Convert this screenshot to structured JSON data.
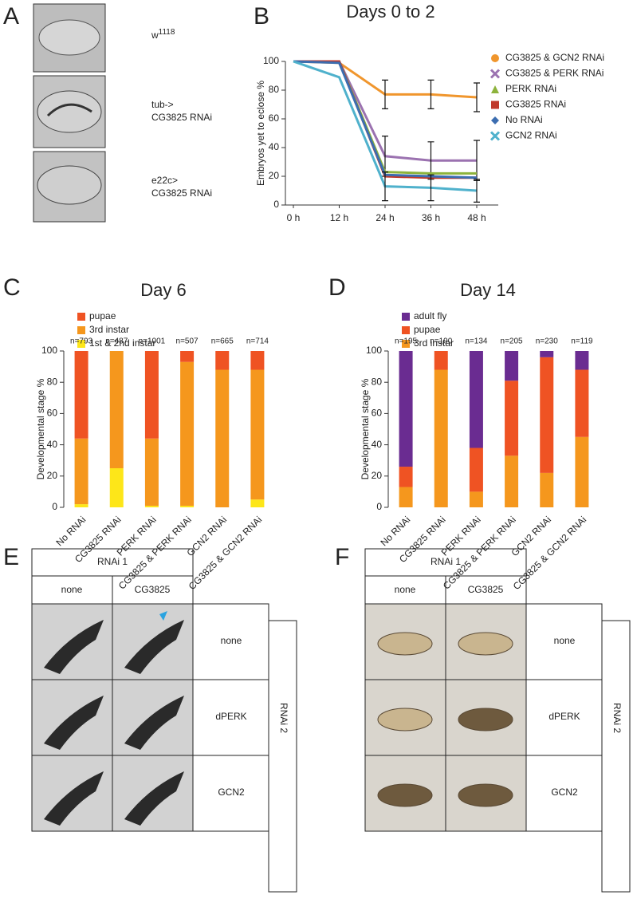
{
  "panel_labels": [
    "A",
    "B",
    "C",
    "D",
    "E",
    "F"
  ],
  "panel_a": {
    "labels": [
      {
        "base": "w",
        "sup": "1118"
      },
      {
        "lines": [
          "tub->",
          "CG3825 RNAi"
        ]
      },
      {
        "lines": [
          "e22c>",
          "CG3825 RNAi"
        ]
      }
    ]
  },
  "chart_data": [
    {
      "type": "line",
      "title": "Days 0 to 2",
      "y_label": "Embryos yet to eclose %",
      "categories": [
        "0 h",
        "12 h",
        "24 h",
        "36 h",
        "48 h"
      ],
      "ylim": [
        0,
        100
      ],
      "yticks": [
        0,
        20,
        40,
        60,
        80,
        100
      ],
      "grid": false,
      "legend": "right",
      "series": [
        {
          "name": "CG3825 & GCN2 RNAi",
          "color": "#f0962d",
          "marker": "circle",
          "values": [
            100,
            99,
            77,
            77,
            75
          ],
          "errors": [
            null,
            null,
            10,
            10,
            10
          ]
        },
        {
          "name": "CG3825 & PERK  RNAi",
          "color": "#9b72b0",
          "marker": "x",
          "values": [
            100,
            100,
            34,
            31,
            31
          ],
          "errors": [
            null,
            null,
            14,
            13,
            14
          ]
        },
        {
          "name": "PERK RNAi",
          "color": "#8db33c",
          "marker": "triangle",
          "values": [
            100,
            100,
            23,
            22,
            22
          ],
          "errors": [
            null,
            null,
            null,
            null,
            null
          ]
        },
        {
          "name": "CG3825 RNAi",
          "color": "#c0392b",
          "marker": "square",
          "values": [
            100,
            100,
            20,
            19,
            19
          ],
          "errors": [
            null,
            null,
            null,
            null,
            null
          ]
        },
        {
          "name": "No RNAi",
          "color": "#3c6db0",
          "marker": "diamond",
          "values": [
            100,
            99,
            21,
            20,
            19
          ],
          "errors": [
            null,
            null,
            null,
            null,
            null
          ]
        },
        {
          "name": "GCN2 RNAi",
          "color": "#4fb1cc",
          "marker": "x",
          "values": [
            100,
            89,
            13,
            12,
            10
          ],
          "errors": [
            null,
            null,
            10,
            9,
            8
          ]
        }
      ]
    },
    {
      "type": "stacked-bar",
      "title": "Day 6",
      "y_label": "Developmental stage %",
      "categories": [
        "No RNAi",
        "CG3825 RNAi",
        "PERK RNAi",
        "CG3825 & PERK  RNAi",
        "GCN2 RNAi",
        "CG3825 & GCN2 RNAi"
      ],
      "annotations": [
        "n=793",
        "n=487",
        "n=1001",
        "n=507",
        "n=665",
        "n=714"
      ],
      "ylim": [
        0,
        100
      ],
      "yticks": [
        0,
        20,
        40,
        60,
        80,
        100
      ],
      "grid": false,
      "legend": "top-left",
      "series": [
        {
          "name": "pupae",
          "color": "#ef5323",
          "values": [
            56,
            0,
            56,
            7,
            12,
            12
          ]
        },
        {
          "name": "3rd instar",
          "color": "#f5971d",
          "values": [
            42,
            75,
            43,
            92,
            88,
            83
          ]
        },
        {
          "name": "1st & 2nd instar",
          "color": "#fde619",
          "values": [
            2,
            25,
            1,
            1,
            0,
            5
          ]
        }
      ]
    },
    {
      "type": "stacked-bar",
      "title": "Day 14",
      "y_label": "Developmental stage %",
      "categories": [
        "No RNAi",
        "CG3825 RNAi",
        "PERK RNAi",
        "CG3825 & PERK  RNAi",
        "GCN2 RNAi",
        "CG3825 & GCN2 RNAi"
      ],
      "annotations": [
        "n=195",
        "n=190",
        "n=134",
        "n=205",
        "n=230",
        "n=119"
      ],
      "ylim": [
        0,
        100
      ],
      "yticks": [
        0,
        20,
        40,
        60,
        80,
        100
      ],
      "grid": false,
      "legend": "top-left",
      "series": [
        {
          "name": "adult fly",
          "color": "#6a2c91",
          "values": [
            74,
            0,
            62,
            19,
            4,
            12
          ]
        },
        {
          "name": "pupae",
          "color": "#ef5323",
          "values": [
            13,
            12,
            28,
            48,
            74,
            43
          ]
        },
        {
          "name": "3rd instar",
          "color": "#f5971d",
          "values": [
            13,
            88,
            10,
            33,
            22,
            45
          ]
        }
      ]
    }
  ],
  "panel_e": {
    "header": "RNAi 1",
    "columns": [
      "none",
      "CG3825"
    ],
    "rows": [
      "none",
      "dPERK",
      "GCN2"
    ],
    "side": "RNAi 2"
  },
  "panel_f": {
    "header": "RNAi 1",
    "columns": [
      "none",
      "CG3825"
    ],
    "rows": [
      "none",
      "dPERK",
      "GCN2"
    ],
    "side": "RNAi 2"
  }
}
